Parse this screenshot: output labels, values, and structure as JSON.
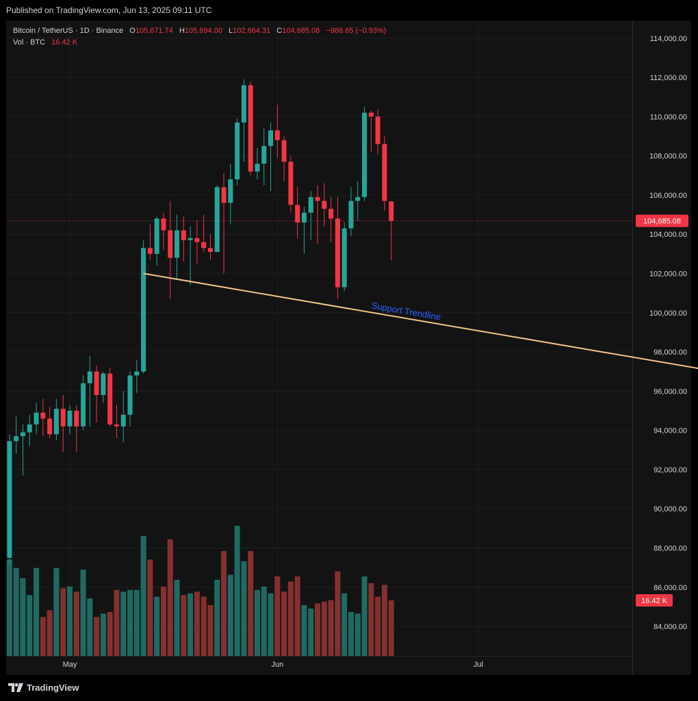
{
  "header": {
    "published_text": "Published on TradingView.com, Jun 13, 2025 09:11 UTC"
  },
  "legend": {
    "symbol": "Bitcoin / TetherUS · 1D · Binance",
    "open_label": "O",
    "open_value": "105,671.74",
    "high_label": "H",
    "high_value": "105,694.00",
    "low_label": "L",
    "low_value": "102,664.31",
    "close_label": "C",
    "close_value": "104,685.08",
    "change": "−986.65 (−0.93%)",
    "vol_label": "Vol · BTC",
    "vol_value": "16.42 K"
  },
  "footer": {
    "brand": "TradingView",
    "logo_icon": "tradingview-logo-icon"
  },
  "colors": {
    "up": "#26a69a",
    "down": "#f23645",
    "vol_up": "#1f6b63",
    "vol_down": "#84302f",
    "trendline": "#f5c58a",
    "trend_label": "#2962ff",
    "price_tag": "#f23645",
    "background": "#131313",
    "grid": "#1f1f1f"
  },
  "chart_data": {
    "type": "candlestick",
    "symbol": "Bitcoin / TetherUS",
    "interval": "1D",
    "exchange": "Binance",
    "ylim": [
      82500,
      114900
    ],
    "y_ticks": [
      84000,
      86000,
      88000,
      90000,
      92000,
      94000,
      96000,
      98000,
      100000,
      102000,
      104000,
      106000,
      108000,
      110000,
      112000,
      114000
    ],
    "y_tick_labels": [
      "84,000.00",
      "86,000.00",
      "88,000.00",
      "90,000.00",
      "92,000.00",
      "94,000.00",
      "96,000.00",
      "98,000.00",
      "100,000.00",
      "102,000.00",
      "104,000.00",
      "106,000.00",
      "108,000.00",
      "110,000.00",
      "112,000.00",
      "114,000.00"
    ],
    "x_labels": [
      {
        "label": "May",
        "date": "2025-05-01"
      },
      {
        "label": "Jun",
        "date": "2025-06-01"
      },
      {
        "label": "Jul",
        "date": "2025-07-01"
      }
    ],
    "first_date": "2025-04-22",
    "x_range_end": "2025-07-24",
    "last_price": "104,685.08",
    "volume_tag": "16.42 K",
    "grid": true,
    "candles": [
      {
        "o": 87500,
        "h": 93800,
        "l": 87200,
        "c": 93450,
        "v": 28.5
      },
      {
        "o": 93450,
        "h": 94700,
        "l": 92800,
        "c": 93700,
        "v": 26.0
      },
      {
        "o": 93700,
        "h": 94300,
        "l": 91700,
        "c": 93900,
        "v": 23.0
      },
      {
        "o": 93900,
        "h": 94800,
        "l": 93200,
        "c": 94300,
        "v": 18.0
      },
      {
        "o": 94300,
        "h": 95400,
        "l": 93800,
        "c": 94900,
        "v": 26.0
      },
      {
        "o": 94900,
        "h": 95600,
        "l": 93700,
        "c": 94600,
        "v": 11.5
      },
      {
        "o": 94600,
        "h": 95200,
        "l": 93600,
        "c": 93800,
        "v": 13.5
      },
      {
        "o": 93800,
        "h": 95600,
        "l": 93500,
        "c": 95100,
        "v": 26.0
      },
      {
        "o": 95100,
        "h": 95800,
        "l": 92900,
        "c": 94200,
        "v": 20.0
      },
      {
        "o": 94200,
        "h": 95300,
        "l": 93800,
        "c": 95000,
        "v": 20.5
      },
      {
        "o": 95000,
        "h": 95300,
        "l": 92900,
        "c": 94200,
        "v": 19.0
      },
      {
        "o": 94200,
        "h": 96800,
        "l": 94000,
        "c": 96400,
        "v": 25.5
      },
      {
        "o": 96400,
        "h": 97800,
        "l": 94200,
        "c": 97000,
        "v": 17.0
      },
      {
        "o": 97000,
        "h": 97300,
        "l": 94400,
        "c": 95800,
        "v": 11.5
      },
      {
        "o": 95800,
        "h": 97000,
        "l": 95400,
        "c": 96900,
        "v": 12.5
      },
      {
        "o": 96900,
        "h": 97200,
        "l": 94200,
        "c": 94300,
        "v": 13.0
      },
      {
        "o": 94300,
        "h": 95300,
        "l": 93600,
        "c": 94200,
        "v": 19.5
      },
      {
        "o": 94200,
        "h": 96000,
        "l": 93400,
        "c": 94800,
        "v": 19.0
      },
      {
        "o": 94800,
        "h": 97000,
        "l": 94200,
        "c": 96800,
        "v": 19.5
      },
      {
        "o": 96800,
        "h": 97600,
        "l": 95900,
        "c": 97000,
        "v": 19.5
      },
      {
        "o": 97000,
        "h": 103700,
        "l": 96900,
        "c": 103300,
        "v": 35.5
      },
      {
        "o": 103300,
        "h": 104500,
        "l": 102700,
        "c": 103000,
        "v": 28.5
      },
      {
        "o": 103000,
        "h": 104900,
        "l": 102400,
        "c": 104800,
        "v": 17.5
      },
      {
        "o": 104800,
        "h": 105100,
        "l": 103200,
        "c": 104200,
        "v": 20.5
      },
      {
        "o": 104200,
        "h": 105700,
        "l": 100700,
        "c": 102800,
        "v": 34.5
      },
      {
        "o": 102800,
        "h": 105000,
        "l": 101700,
        "c": 104200,
        "v": 22.5
      },
      {
        "o": 104200,
        "h": 104900,
        "l": 102600,
        "c": 103700,
        "v": 18.0
      },
      {
        "o": 103700,
        "h": 104400,
        "l": 101400,
        "c": 103800,
        "v": 18.5
      },
      {
        "o": 103800,
        "h": 104700,
        "l": 102500,
        "c": 103600,
        "v": 19.0
      },
      {
        "o": 103600,
        "h": 105000,
        "l": 103100,
        "c": 103300,
        "v": 17.5
      },
      {
        "o": 103300,
        "h": 104000,
        "l": 102700,
        "c": 103100,
        "v": 15.0
      },
      {
        "o": 103100,
        "h": 106500,
        "l": 103100,
        "c": 106400,
        "v": 22.5
      },
      {
        "o": 106400,
        "h": 107100,
        "l": 102000,
        "c": 105600,
        "v": 31.0
      },
      {
        "o": 105600,
        "h": 107600,
        "l": 104500,
        "c": 106800,
        "v": 24.0
      },
      {
        "o": 106800,
        "h": 109900,
        "l": 106500,
        "c": 109700,
        "v": 38.5
      },
      {
        "o": 109700,
        "h": 111900,
        "l": 107700,
        "c": 111600,
        "v": 28.0
      },
      {
        "o": 111600,
        "h": 111800,
        "l": 107000,
        "c": 107200,
        "v": 31.0
      },
      {
        "o": 107200,
        "h": 108400,
        "l": 106800,
        "c": 107600,
        "v": 19.5
      },
      {
        "o": 107600,
        "h": 109400,
        "l": 106500,
        "c": 108500,
        "v": 20.5
      },
      {
        "o": 108500,
        "h": 109700,
        "l": 106200,
        "c": 109300,
        "v": 18.5
      },
      {
        "o": 109300,
        "h": 110600,
        "l": 107900,
        "c": 108800,
        "v": 23.5
      },
      {
        "o": 108800,
        "h": 109000,
        "l": 106700,
        "c": 107700,
        "v": 19.0
      },
      {
        "o": 107700,
        "h": 108000,
        "l": 105100,
        "c": 105500,
        "v": 22.0
      },
      {
        "o": 105500,
        "h": 106400,
        "l": 103800,
        "c": 104600,
        "v": 23.5
      },
      {
        "o": 104600,
        "h": 105400,
        "l": 103000,
        "c": 105100,
        "v": 15.0
      },
      {
        "o": 105100,
        "h": 106200,
        "l": 103700,
        "c": 105900,
        "v": 14.0
      },
      {
        "o": 105900,
        "h": 106500,
        "l": 103500,
        "c": 105700,
        "v": 15.5
      },
      {
        "o": 105700,
        "h": 106600,
        "l": 104400,
        "c": 105300,
        "v": 16.0
      },
      {
        "o": 105300,
        "h": 105900,
        "l": 103600,
        "c": 104800,
        "v": 16.5
      },
      {
        "o": 104800,
        "h": 105900,
        "l": 100700,
        "c": 101300,
        "v": 25.0
      },
      {
        "o": 101300,
        "h": 104600,
        "l": 101100,
        "c": 104300,
        "v": 18.5
      },
      {
        "o": 104300,
        "h": 106400,
        "l": 103900,
        "c": 105700,
        "v": 13.0
      },
      {
        "o": 105700,
        "h": 106700,
        "l": 104700,
        "c": 105900,
        "v": 12.5
      },
      {
        "o": 105900,
        "h": 110500,
        "l": 105700,
        "c": 110200,
        "v": 23.5
      },
      {
        "o": 110200,
        "h": 110300,
        "l": 108200,
        "c": 110000,
        "v": 21.5
      },
      {
        "o": 110000,
        "h": 110400,
        "l": 108100,
        "c": 108600,
        "v": 17.5
      },
      {
        "o": 108600,
        "h": 109000,
        "l": 105200,
        "c": 105700,
        "v": 21.0
      },
      {
        "o": 105671.74,
        "h": 105694,
        "l": 102664.31,
        "c": 104685.08,
        "v": 16.42
      }
    ],
    "annotations": [
      {
        "type": "trendline",
        "label": "Support Trendline",
        "from": {
          "index": 20,
          "price": 102000
        },
        "to": {
          "index": 109,
          "price": 96800
        }
      }
    ]
  }
}
